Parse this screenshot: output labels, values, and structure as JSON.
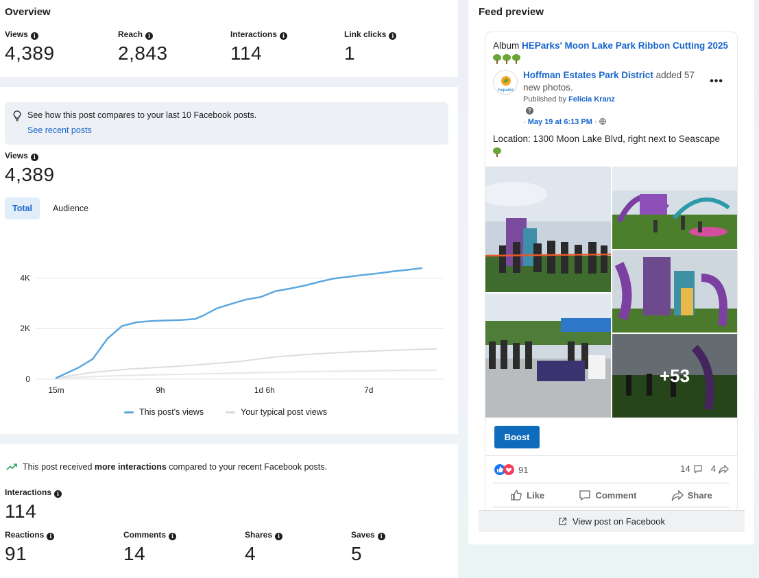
{
  "overview": {
    "title": "Overview",
    "metrics": [
      {
        "label": "Views",
        "value": "4,389"
      },
      {
        "label": "Reach",
        "value": "2,843"
      },
      {
        "label": "Interactions",
        "value": "114"
      },
      {
        "label": "Link clicks",
        "value": "1"
      }
    ]
  },
  "views_card": {
    "compare_text": "See how this post compares to your last 10 Facebook posts.",
    "compare_link": "See recent posts",
    "views_label": "Views",
    "views_value": "4,389",
    "tabs": [
      "Total",
      "Audience"
    ],
    "legend": [
      "This post's views",
      "Your typical post views"
    ],
    "colors": {
      "this_post": "#5ba7e0",
      "typical": "#d9d9d9"
    }
  },
  "chart_data": {
    "type": "line",
    "x_ticks": [
      "15m",
      "9h",
      "1d 6h",
      "7d"
    ],
    "y_ticks": [
      "0",
      "2K",
      "4K"
    ],
    "ylim": [
      0,
      4500
    ],
    "grid": true,
    "legend_position": "bottom",
    "series": [
      {
        "name": "This post's views",
        "x": [
          0,
          0.06,
          0.1,
          0.14,
          0.18,
          0.22,
          0.26,
          0.3,
          0.34,
          0.38,
          0.4,
          0.44,
          0.48,
          0.52,
          0.54,
          0.56,
          0.6,
          0.64,
          0.68,
          0.72,
          0.76,
          0.8,
          0.84,
          0.88,
          0.92,
          0.96,
          1.0
        ],
        "values": [
          50,
          450,
          800,
          1600,
          2100,
          2250,
          2300,
          2320,
          2340,
          2380,
          2500,
          2800,
          2980,
          3150,
          3200,
          3250,
          3480,
          3580,
          3700,
          3850,
          3980,
          4050,
          4120,
          4180,
          4260,
          4320,
          4389
        ]
      },
      {
        "name": "Your typical post views",
        "x": [
          0,
          0.1,
          0.2,
          0.3,
          0.4,
          0.5,
          0.6,
          0.7,
          0.8,
          0.9,
          1.0,
          1.04
        ],
        "values": [
          50,
          270,
          400,
          480,
          580,
          700,
          880,
          990,
          1070,
          1130,
          1180,
          1200
        ]
      },
      {
        "name": "",
        "x": [
          0,
          0.1,
          0.2,
          0.3,
          0.4,
          0.5,
          0.6,
          0.7,
          0.8,
          0.9,
          1.0,
          1.04
        ],
        "values": [
          30,
          100,
          150,
          180,
          210,
          240,
          270,
          300,
          320,
          340,
          350,
          355
        ]
      }
    ]
  },
  "inter_card": {
    "note_prefix": "This post received ",
    "note_bold": "more interactions",
    "note_suffix": " compared to your recent Facebook posts.",
    "interactions_label": "Interactions",
    "interactions_value": "114",
    "metrics": [
      {
        "label": "Reactions",
        "value": "91"
      },
      {
        "label": "Comments",
        "value": "14"
      },
      {
        "label": "Shares",
        "value": "4"
      },
      {
        "label": "Saves",
        "value": "5"
      }
    ]
  },
  "feed": {
    "title": "Feed preview",
    "album_prefix": "Album",
    "album_name": "HEParks' Moon Lake Park Ribbon Cutting 2025",
    "page_name": "Hoffman Estates Park District",
    "added_text": " added 57 new photos.",
    "published_by": "Published by",
    "publisher": "Felicia Kranz",
    "date": "May 19 at 6:13 PM",
    "location_text": "Location: 1300 Moon Lake Blvd, right next to Seascape",
    "more_photos": "+53",
    "boost": "Boost",
    "reaction_count": "91",
    "comment_count": "14",
    "share_count": "4",
    "like": "Like",
    "comment": "Comment",
    "share": "Share",
    "view_on_fb": "View post on Facebook",
    "avatar_text": "heparks"
  }
}
